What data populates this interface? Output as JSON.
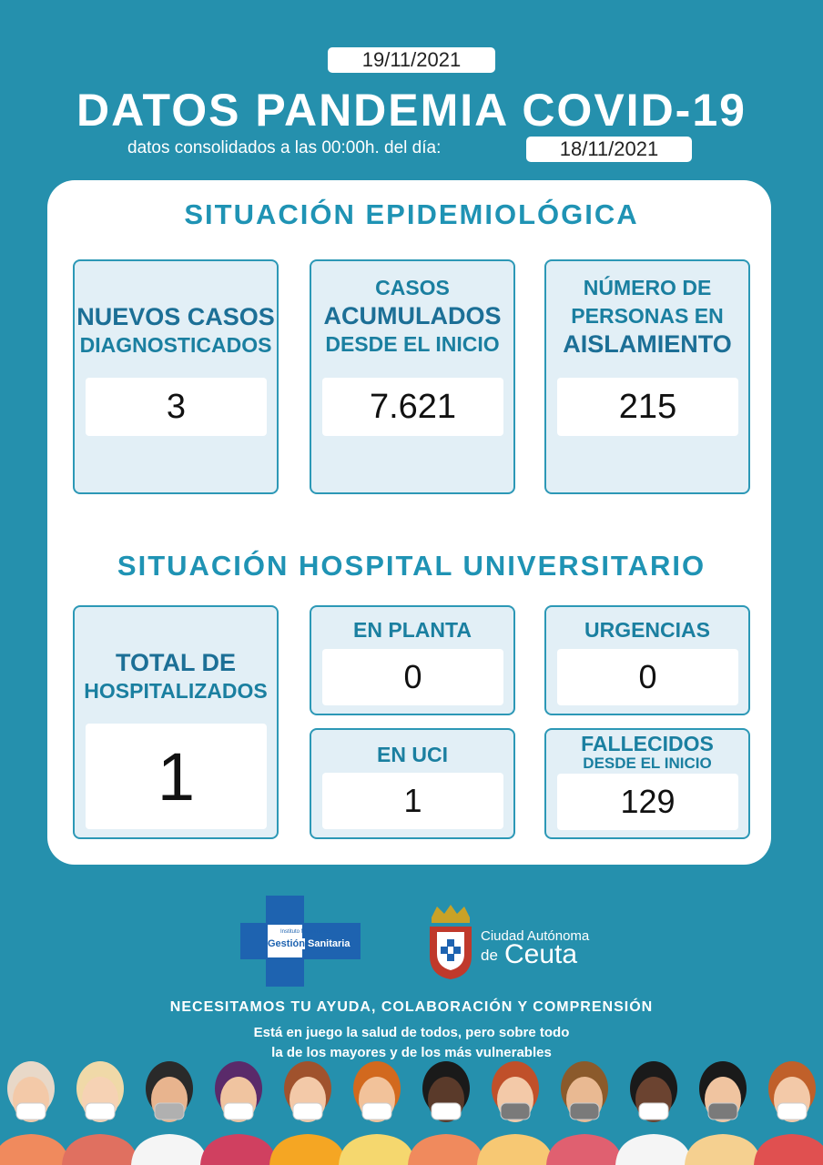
{
  "header": {
    "report_date": "19/11/2021",
    "title": "DATOS PANDEMIA COVID-19",
    "subtitle_prefix": "datos consolidados a las 00:00h. del día:",
    "consolidated_date": "18/11/2021"
  },
  "epidemiological": {
    "title": "SITUACIÓN EPIDEMIOLÓGICA",
    "new_cases": {
      "line1": "NUEVOS CASOS",
      "line2": "DIAGNOSTICADOS",
      "value": "3"
    },
    "cumulative": {
      "line1": "CASOS",
      "line2": "ACUMULADOS",
      "line3": "DESDE EL INICIO",
      "value": "7.621"
    },
    "isolation": {
      "line1": "NÚMERO DE",
      "line2": "PERSONAS EN",
      "line3": "AISLAMIENTO",
      "value": "215"
    }
  },
  "hospital": {
    "title": "SITUACIÓN HOSPITAL UNIVERSITARIO",
    "total": {
      "line1": "TOTAL DE",
      "line2": "HOSPITALIZADOS",
      "value": "1"
    },
    "ward": {
      "label": "EN PLANTA",
      "value": "0"
    },
    "emergency": {
      "label": "URGENCIAS",
      "value": "0"
    },
    "icu": {
      "label": "EN UCI",
      "value": "1"
    },
    "deaths": {
      "line1": "FALLECIDOS",
      "line2": "DESDE EL INICIO",
      "value": "129"
    }
  },
  "logos": {
    "ingesa": {
      "line1": "Instituto Nacional de",
      "word1": "Gestión",
      "word2": "Sanitaria"
    },
    "ceuta": {
      "line1": "Ciudad Autónoma",
      "prefix": "de",
      "name": "Ceuta"
    }
  },
  "footer": {
    "headline": "NECESITAMOS TU AYUDA, COLABORACIÓN  Y COMPRENSIÓN",
    "line1": "Está en juego la salud de todos, pero sobre todo",
    "line2": "la de los mayores y de los más vulnerables"
  }
}
